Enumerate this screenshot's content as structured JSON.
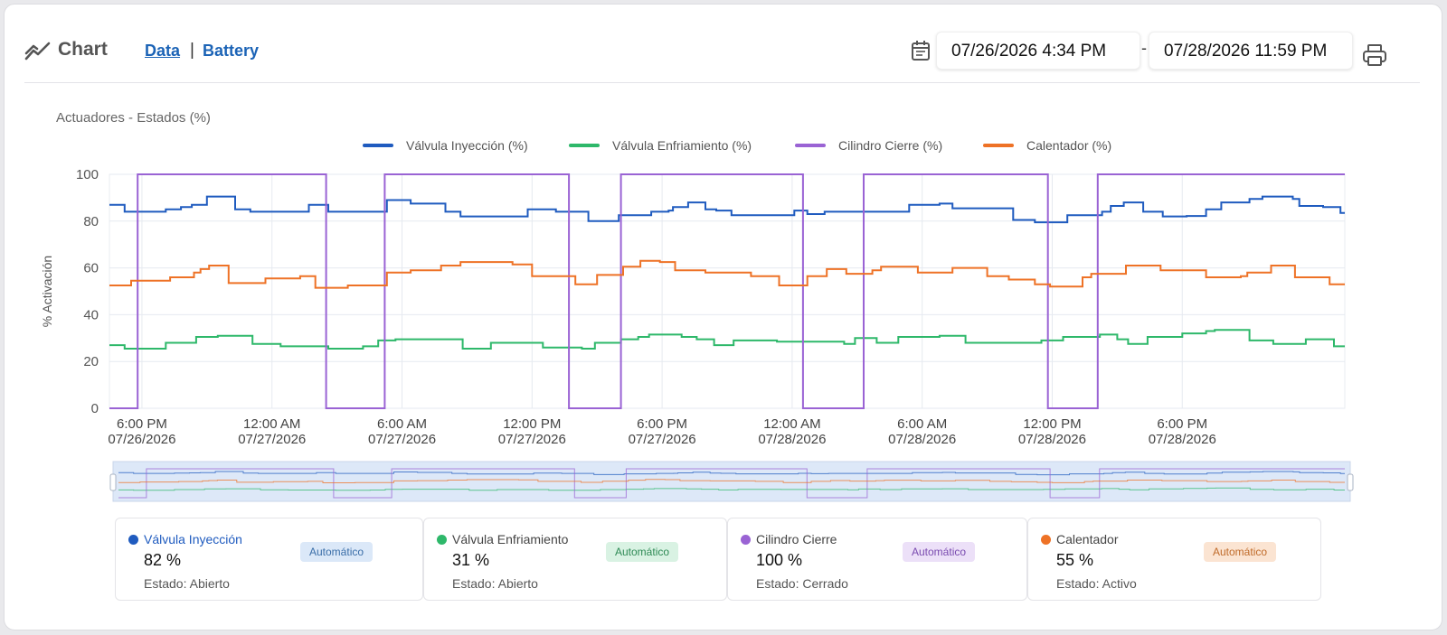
{
  "header": {
    "title": "Chart",
    "tabs": [
      {
        "label": "Data",
        "active": true
      },
      {
        "label": "Battery",
        "active": false
      }
    ],
    "separator": "|",
    "date_from": "07/26/2026 4:34 PM",
    "date_separator": "-",
    "date_to": "07/28/2026 11:59 PM"
  },
  "icons": {
    "chart": "chart-line-icon",
    "calendar": "calendar-icon",
    "print": "print-icon"
  },
  "colors": {
    "valvula_inyeccion": "#1f5bbf",
    "valvula_enfriamiento": "#2eb86a",
    "cilindro_cierre": "#9a63d4",
    "calentador": "#ee7226",
    "link": "#1b63b6"
  },
  "chart_data": {
    "type": "line",
    "step": true,
    "title": "Actuadores - Estados (%)",
    "xlabel": "",
    "ylabel": "% Activación",
    "ylim": [
      0,
      100
    ],
    "yticks": [
      0,
      20,
      40,
      60,
      80,
      100
    ],
    "xticks": [
      {
        "t": 1.5,
        "line1": "6:00 PM",
        "line2": "07/26/2026"
      },
      {
        "t": 7.5,
        "line1": "12:00 AM",
        "line2": "07/27/2026"
      },
      {
        "t": 13.5,
        "line1": "6:00 AM",
        "line2": "07/27/2026"
      },
      {
        "t": 19.5,
        "line1": "12:00 PM",
        "line2": "07/27/2026"
      },
      {
        "t": 25.5,
        "line1": "6:00 PM",
        "line2": "07/27/2026"
      },
      {
        "t": 31.5,
        "line1": "12:00 AM",
        "line2": "07/28/2026"
      },
      {
        "t": 37.5,
        "line1": "6:00 AM",
        "line2": "07/28/2026"
      },
      {
        "t": 43.5,
        "line1": "12:00 PM",
        "line2": "07/28/2026"
      },
      {
        "t": 49.5,
        "line1": "6:00 PM",
        "line2": "07/28/2026"
      }
    ],
    "x_range_hours_from_start": [
      0,
      57
    ],
    "grid": true,
    "legend_position": "top",
    "series": [
      {
        "name": "Válvula Inyección (%)",
        "key": "valvula_inyeccion",
        "points": [
          [
            0,
            87
          ],
          [
            0.7,
            84
          ],
          [
            1.8,
            84
          ],
          [
            2.6,
            85
          ],
          [
            3.3,
            86
          ],
          [
            3.8,
            87
          ],
          [
            4.5,
            90.5
          ],
          [
            5.0,
            90.5
          ],
          [
            5.8,
            85
          ],
          [
            6.5,
            84
          ],
          [
            9.0,
            84
          ],
          [
            9.2,
            87
          ],
          [
            10.0,
            87
          ],
          [
            10.1,
            84
          ],
          [
            12.7,
            84
          ],
          [
            12.8,
            89
          ],
          [
            13.5,
            89
          ],
          [
            13.9,
            87.5
          ],
          [
            15.5,
            84
          ],
          [
            16.2,
            82
          ],
          [
            19.0,
            82
          ],
          [
            19.3,
            85
          ],
          [
            20.5,
            85
          ],
          [
            20.6,
            84
          ],
          [
            21.7,
            84
          ],
          [
            22.1,
            80
          ],
          [
            23.4,
            80
          ],
          [
            23.5,
            82.5
          ],
          [
            24.5,
            82.5
          ],
          [
            25.0,
            84
          ],
          [
            25.8,
            84.5
          ],
          [
            26.0,
            86
          ],
          [
            26.7,
            88
          ],
          [
            27.5,
            85
          ],
          [
            28.0,
            84.5
          ],
          [
            28.7,
            82.5
          ],
          [
            31.0,
            82.5
          ],
          [
            31.6,
            84.5
          ],
          [
            32.2,
            83
          ],
          [
            33.0,
            84
          ],
          [
            36.0,
            84
          ],
          [
            36.7,
            84
          ],
          [
            36.9,
            87
          ],
          [
            38.3,
            87.5
          ],
          [
            38.9,
            85.5
          ],
          [
            41.5,
            85.5
          ],
          [
            41.7,
            80.5
          ],
          [
            42.3,
            80.5
          ],
          [
            42.7,
            79.5
          ],
          [
            44.0,
            79.5
          ],
          [
            44.2,
            82.5
          ],
          [
            45.3,
            82.5
          ],
          [
            45.8,
            84
          ],
          [
            46.2,
            86.5
          ],
          [
            46.8,
            88
          ],
          [
            47.7,
            84
          ],
          [
            48.6,
            82
          ],
          [
            49.7,
            82.2
          ],
          [
            50.6,
            85
          ],
          [
            51.3,
            88
          ],
          [
            52.6,
            89.5
          ],
          [
            53.2,
            90.5
          ],
          [
            54.6,
            89.5
          ],
          [
            54.9,
            86.5
          ],
          [
            56.0,
            86
          ],
          [
            56.8,
            83.5
          ],
          [
            57,
            83.5
          ]
        ]
      },
      {
        "name": "Válvula Enfriamiento (%)",
        "key": "valvula_enfriamiento",
        "points": [
          [
            0,
            27
          ],
          [
            0.4,
            27
          ],
          [
            0.7,
            25.5
          ],
          [
            2.2,
            25.5
          ],
          [
            2.6,
            28
          ],
          [
            3.8,
            28
          ],
          [
            4.0,
            30.5
          ],
          [
            5.0,
            31
          ],
          [
            6.5,
            31
          ],
          [
            6.6,
            27.5
          ],
          [
            7.9,
            26.5
          ],
          [
            9.0,
            26.5
          ],
          [
            9.8,
            26.5
          ],
          [
            10.0,
            26.5
          ],
          [
            10.1,
            25.5
          ],
          [
            11.1,
            25.5
          ],
          [
            11.7,
            26.5
          ],
          [
            12.4,
            29
          ],
          [
            13.2,
            29.5
          ],
          [
            15.7,
            29.5
          ],
          [
            16.3,
            25.5
          ],
          [
            17.0,
            25.5
          ],
          [
            17.6,
            28
          ],
          [
            19.3,
            28
          ],
          [
            20.0,
            26
          ],
          [
            21.2,
            26
          ],
          [
            21.8,
            25.5
          ],
          [
            22.4,
            28
          ],
          [
            23.5,
            28
          ],
          [
            23.6,
            29.5
          ],
          [
            24.2,
            29.5
          ],
          [
            24.4,
            30.5
          ],
          [
            24.9,
            31.5
          ],
          [
            26.0,
            31.5
          ],
          [
            26.4,
            30.5
          ],
          [
            27.1,
            29.5
          ],
          [
            27.9,
            27
          ],
          [
            28.7,
            27
          ],
          [
            28.8,
            29
          ],
          [
            30.3,
            29
          ],
          [
            30.8,
            28.5
          ],
          [
            32.0,
            28.5
          ],
          [
            32.3,
            28.5
          ],
          [
            33.3,
            28.5
          ],
          [
            33.9,
            27.5
          ],
          [
            34.4,
            30
          ],
          [
            35.2,
            30
          ],
          [
            35.4,
            28
          ],
          [
            36.0,
            28
          ],
          [
            36.4,
            30.5
          ],
          [
            37.4,
            30.5
          ],
          [
            38.3,
            31
          ],
          [
            39.2,
            31
          ],
          [
            39.5,
            28
          ],
          [
            42.4,
            28
          ],
          [
            43.0,
            29
          ],
          [
            43.6,
            29
          ],
          [
            44.0,
            30.5
          ],
          [
            44.9,
            30.5
          ],
          [
            45.7,
            31.5
          ],
          [
            46.5,
            29.5
          ],
          [
            47.0,
            27.5
          ],
          [
            47.6,
            27.5
          ],
          [
            47.9,
            30.5
          ],
          [
            48.9,
            30.5
          ],
          [
            49.5,
            32
          ],
          [
            50.6,
            33
          ],
          [
            51.0,
            33.5
          ],
          [
            52.0,
            33.5
          ],
          [
            52.6,
            29
          ],
          [
            53.5,
            29
          ],
          [
            53.7,
            27.5
          ],
          [
            54.8,
            27.5
          ],
          [
            55.2,
            29.5
          ],
          [
            56.3,
            29.5
          ],
          [
            56.5,
            26.5
          ],
          [
            57,
            26.5
          ]
        ]
      },
      {
        "name": "Cilindro Cierre (%)",
        "key": "cilindro_cierre",
        "points": [
          [
            0,
            0
          ],
          [
            1.1,
            0
          ],
          [
            1.3,
            100
          ],
          [
            9.9,
            100
          ],
          [
            10.0,
            0
          ],
          [
            12.5,
            0
          ],
          [
            12.7,
            100
          ],
          [
            21.1,
            100
          ],
          [
            21.2,
            0
          ],
          [
            23.4,
            0
          ],
          [
            23.6,
            100
          ],
          [
            31.9,
            100
          ],
          [
            32.0,
            0
          ],
          [
            34.6,
            0
          ],
          [
            34.8,
            100
          ],
          [
            43.1,
            100
          ],
          [
            43.3,
            0
          ],
          [
            45.4,
            0
          ],
          [
            45.6,
            100
          ],
          [
            57,
            100
          ]
        ]
      },
      {
        "name": "Calentador (%)",
        "key": "calentador",
        "points": [
          [
            0,
            52.5
          ],
          [
            0.8,
            52.5
          ],
          [
            1.0,
            54.5
          ],
          [
            2.2,
            54.5
          ],
          [
            2.8,
            56
          ],
          [
            3.5,
            56
          ],
          [
            3.9,
            58
          ],
          [
            4.2,
            59.5
          ],
          [
            4.6,
            61
          ],
          [
            5.0,
            61
          ],
          [
            5.5,
            53.5
          ],
          [
            6.6,
            53.5
          ],
          [
            7.2,
            55.5
          ],
          [
            8.5,
            55.5
          ],
          [
            8.8,
            56.5
          ],
          [
            9.3,
            56.5
          ],
          [
            9.5,
            51.5
          ],
          [
            10.6,
            51.5
          ],
          [
            11.0,
            52.5
          ],
          [
            12.7,
            52.5
          ],
          [
            12.8,
            58
          ],
          [
            13.9,
            59
          ],
          [
            15.3,
            61
          ],
          [
            16.2,
            62.5
          ],
          [
            18.1,
            62.5
          ],
          [
            18.6,
            61.5
          ],
          [
            19.3,
            61.5
          ],
          [
            19.5,
            56.5
          ],
          [
            21.0,
            56.5
          ],
          [
            21.5,
            53
          ],
          [
            22.4,
            53
          ],
          [
            22.5,
            57
          ],
          [
            23.5,
            57
          ],
          [
            23.7,
            60.5
          ],
          [
            24.5,
            63
          ],
          [
            25.4,
            62.5
          ],
          [
            26.1,
            59
          ],
          [
            27.4,
            59
          ],
          [
            27.5,
            58
          ],
          [
            29.2,
            58
          ],
          [
            29.6,
            56.5
          ],
          [
            30.4,
            56.5
          ],
          [
            30.9,
            52.5
          ],
          [
            31.8,
            52.5
          ],
          [
            32.2,
            56.5
          ],
          [
            33.1,
            59.5
          ],
          [
            33.9,
            59.5
          ],
          [
            34.0,
            57.5
          ],
          [
            35.2,
            59
          ],
          [
            35.6,
            60.5
          ],
          [
            36.9,
            60.5
          ],
          [
            37.3,
            58
          ],
          [
            38.5,
            58
          ],
          [
            38.9,
            60
          ],
          [
            40.3,
            60
          ],
          [
            40.5,
            56.5
          ],
          [
            41.3,
            56.5
          ],
          [
            41.5,
            55
          ],
          [
            42.4,
            55
          ],
          [
            42.7,
            53
          ],
          [
            43.4,
            52
          ],
          [
            44.5,
            52
          ],
          [
            44.9,
            56
          ],
          [
            45.2,
            56
          ],
          [
            45.3,
            57.5
          ],
          [
            46.8,
            57.5
          ],
          [
            46.9,
            61
          ],
          [
            48.3,
            61
          ],
          [
            48.5,
            59
          ],
          [
            50.5,
            59
          ],
          [
            50.6,
            56
          ],
          [
            51.5,
            56
          ],
          [
            52.2,
            56.5
          ],
          [
            52.5,
            58
          ],
          [
            53.3,
            58
          ],
          [
            53.6,
            61
          ],
          [
            54.5,
            61
          ],
          [
            54.7,
            56
          ],
          [
            55.8,
            56
          ],
          [
            56.3,
            53
          ],
          [
            57,
            53
          ]
        ]
      }
    ]
  },
  "summary_cards": [
    {
      "key": "valvula_inyeccion",
      "name": "Válvula Inyección",
      "value": "82 %",
      "state_label": "Estado:",
      "state": "Abierto",
      "mode": "Automático",
      "badge_bg": "#dbe8f8",
      "badge_fg": "#3a6ea8",
      "name_color": "#1f5bbf"
    },
    {
      "key": "valvula_enfriamiento",
      "name": "Válvula Enfriamiento",
      "value": "31 %",
      "state_label": "Estado:",
      "state": "Abierto",
      "mode": "Automático",
      "badge_bg": "#d9f2e3",
      "badge_fg": "#2e8a55",
      "name_color": "#444444"
    },
    {
      "key": "cilindro_cierre",
      "name": "Cilindro Cierre",
      "value": "100 %",
      "state_label": "Estado:",
      "state": "Cerrado",
      "mode": "Automático",
      "badge_bg": "#ece0f8",
      "badge_fg": "#7a4bb0",
      "name_color": "#444444"
    },
    {
      "key": "calentador",
      "name": "Calentador",
      "value": "55 %",
      "state_label": "Estado:",
      "state": "Activo",
      "mode": "Automático",
      "badge_bg": "#fbe4d2",
      "badge_fg": "#c06b2a",
      "name_color": "#444444"
    }
  ]
}
